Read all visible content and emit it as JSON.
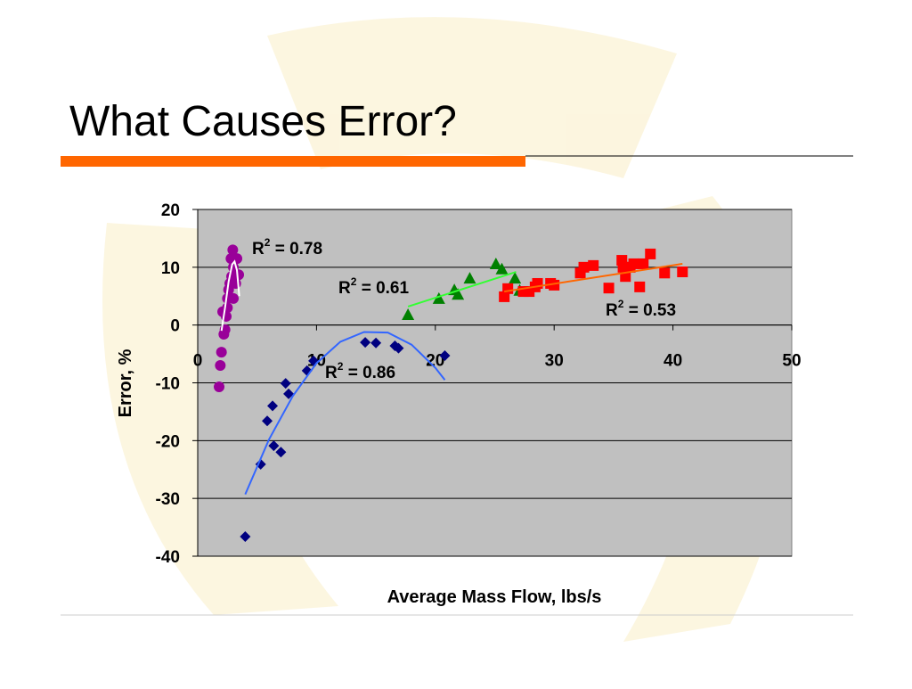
{
  "chart_data": {
    "type": "scatter",
    "title": "What Causes Error?",
    "x_label": "Average Mass Flow, lbs/s",
    "y_label": "Error, %",
    "xlim": [
      0,
      50
    ],
    "xticks": [
      0,
      10,
      20,
      30,
      40,
      50
    ],
    "ylim": [
      -40,
      20
    ],
    "yticks": [
      -40,
      -30,
      -20,
      -10,
      0,
      10,
      20
    ],
    "grid": true,
    "series": [
      {
        "color": "#990099",
        "marker": "circle",
        "x": [
          1.8,
          1.9,
          2.0,
          2.2,
          2.3,
          2.1,
          2.4,
          2.5,
          2.6,
          2.7,
          2.85,
          3.0,
          2.8,
          2.95,
          3.3,
          3.2,
          3.45,
          3.0,
          2.5
        ],
        "values": [
          -10.7,
          -7,
          -4.7,
          -1.6,
          -0.8,
          2.3,
          1.5,
          4.6,
          6.1,
          7.2,
          8.4,
          10,
          11.5,
          13,
          11.5,
          7.2,
          8.7,
          4.6,
          3
        ],
        "trendline": {
          "color": "#ffffff",
          "x": [
            2.0,
            2.3,
            2.6,
            2.9,
            3.1,
            3.3,
            3.5
          ],
          "values": [
            -1,
            3,
            7.5,
            10.5,
            11,
            9.5,
            5
          ],
          "r2": {
            "base": "R",
            "sup": "2",
            "text": " = 0.78"
          }
        }
      },
      {
        "color": "#000080",
        "marker": "diamond",
        "x": [
          4.0,
          5.3,
          5.85,
          6.3,
          6.4,
          7.0,
          7.4,
          7.65,
          9.2,
          9.75,
          14.1,
          15.0,
          16.6,
          16.9,
          20.8
        ],
        "values": [
          -36.6,
          -24.1,
          -16.6,
          -14,
          -20.9,
          -22,
          -10.1,
          -11.9,
          -7.9,
          -6.2,
          -3,
          -3.1,
          -3.6,
          -4,
          -5.3
        ],
        "trendline": {
          "color": "#3366ff",
          "x": [
            4,
            6,
            8,
            10,
            12,
            14,
            16,
            18,
            20,
            20.8
          ],
          "values": [
            -29.3,
            -19.8,
            -12.3,
            -6.6,
            -2.9,
            -1.2,
            -1.3,
            -3.4,
            -7.4,
            -9.5
          ],
          "r2": {
            "base": "R",
            "sup": "2",
            "text": " = 0.86"
          }
        }
      },
      {
        "color": "#008000",
        "marker": "triangle",
        "x": [
          17.7,
          20.3,
          21.6,
          21.9,
          22.9,
          25.1,
          25.6,
          26.7,
          27.1
        ],
        "values": [
          1.8,
          4.6,
          6.1,
          5.3,
          8.1,
          10.6,
          9.7,
          8.1,
          6
        ],
        "trendline": {
          "color": "#33ff33",
          "x": [
            17.7,
            26.8
          ],
          "values": [
            3.2,
            9.2
          ],
          "r2": {
            "base": "R",
            "sup": "2",
            "text": " = 0.61"
          }
        }
      },
      {
        "color": "#ff0000",
        "marker": "square",
        "x": [
          25.8,
          26.1,
          27.4,
          27.9,
          28.4,
          28.6,
          29.7,
          30.0,
          32.2,
          32.5,
          33.3,
          34.6,
          35.7,
          35.8,
          36.0,
          36.4,
          36.7,
          37.2,
          37.5,
          38.1,
          39.3,
          40.8
        ],
        "values": [
          4.9,
          6.3,
          5.8,
          5.8,
          6.6,
          7.2,
          7.2,
          6.9,
          9.0,
          10,
          10.3,
          6.4,
          11.2,
          10,
          8.4,
          10,
          10.6,
          6.6,
          10.6,
          12.3,
          9,
          9.2
        ],
        "trendline": {
          "color": "#ff6600",
          "x": [
            25.8,
            40.8
          ],
          "values": [
            5.8,
            10.6
          ],
          "r2": {
            "base": "R",
            "sup": "2",
            "text": " = 0.53"
          }
        }
      }
    ]
  }
}
